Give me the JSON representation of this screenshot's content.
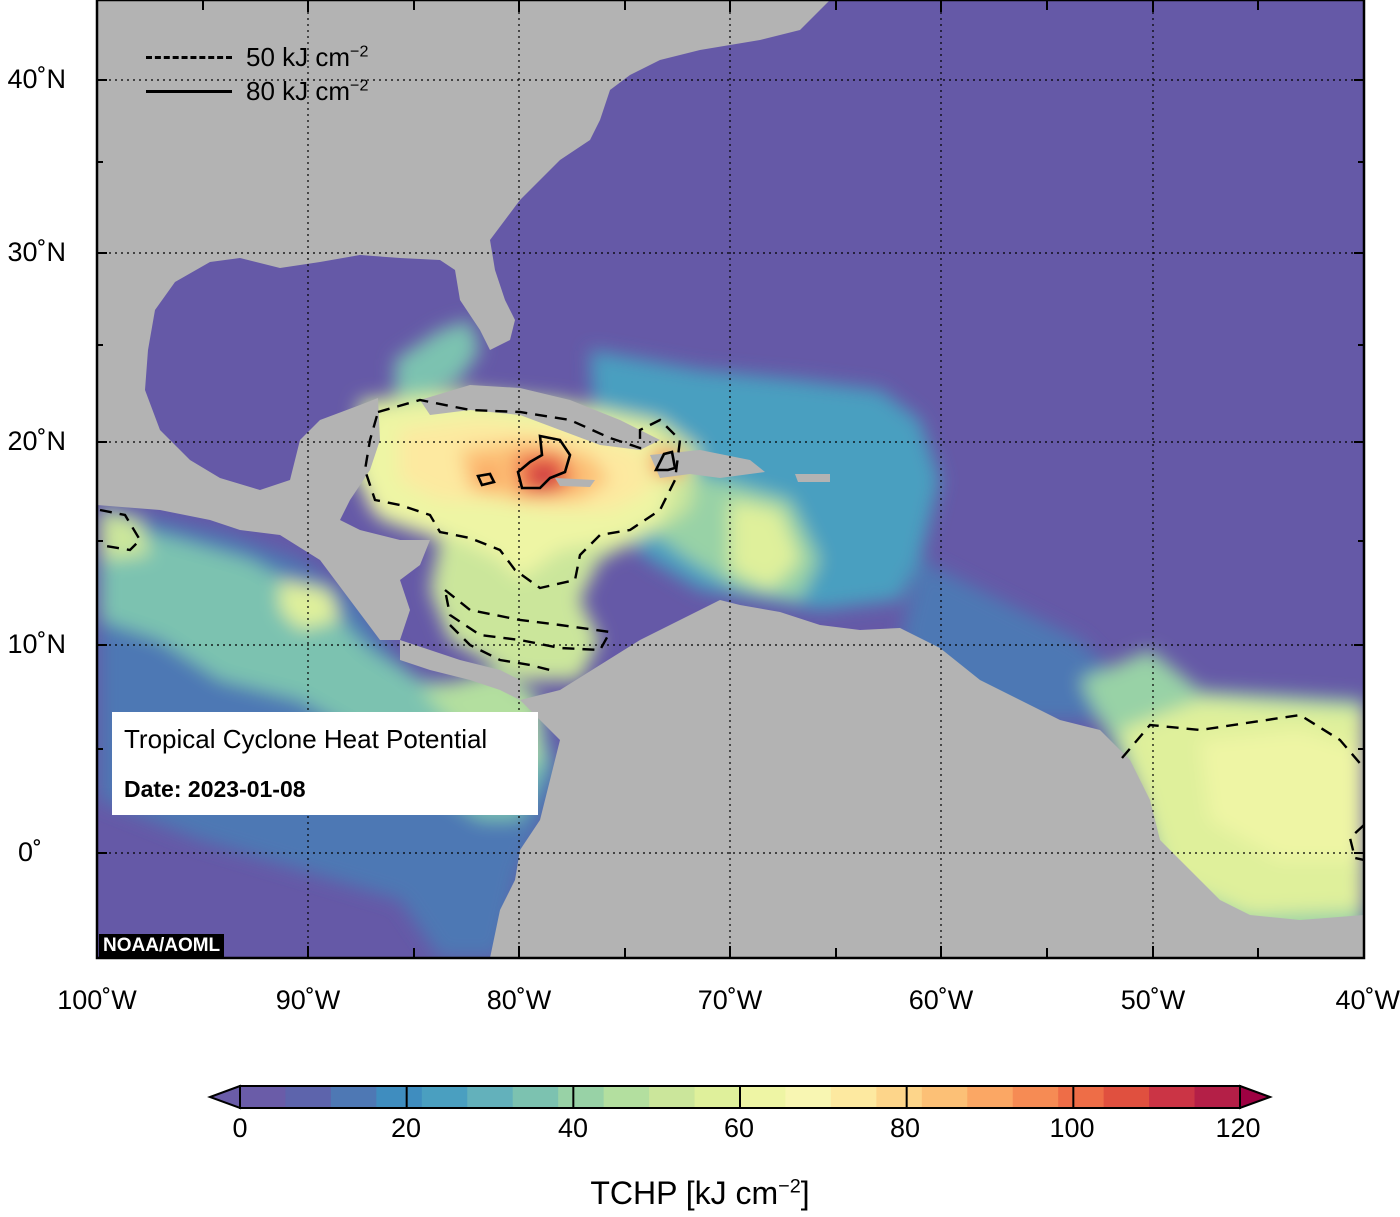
{
  "colors": {
    "ocean_low": "#6559a7",
    "land": "#b3b3b3",
    "contour": "#000000",
    "scale": [
      "#6a5ca8",
      "#5d64ac",
      "#4e78b4",
      "#3f8dbf",
      "#4a9fc0",
      "#63b1bb",
      "#7cc2b0",
      "#98d2a6",
      "#b3df9f",
      "#cbe69b",
      "#dff09b",
      "#eef5a4",
      "#f8f6b2",
      "#fde9a0",
      "#fdd58a",
      "#fcc076",
      "#fba764",
      "#f68b54",
      "#ee6d47",
      "#e0503f",
      "#cb3445",
      "#b41f47",
      "#9e0142"
    ]
  },
  "legend": {
    "dashed_value": "50 kJ cm",
    "solid_value": "80 kJ cm",
    "exponent": "−2"
  },
  "info": {
    "title": "Tropical Cyclone Heat Potential",
    "date": "Date: 2023-01-08"
  },
  "credit": "NOAA/AOML",
  "axes": {
    "lat_labels": [
      "40˚N",
      "30˚N",
      "20˚N",
      "10˚N",
      "0˚"
    ],
    "lon_labels": [
      "100˚W",
      "90˚W",
      "80˚W",
      "70˚W",
      "60˚W",
      "50˚W",
      "40˚W"
    ]
  },
  "colorbar": {
    "tick_labels": [
      "0",
      "20",
      "40",
      "60",
      "80",
      "100",
      "120"
    ],
    "title_main": "TCHP [kJ cm",
    "title_exp": "−2",
    "title_end": "]"
  }
}
